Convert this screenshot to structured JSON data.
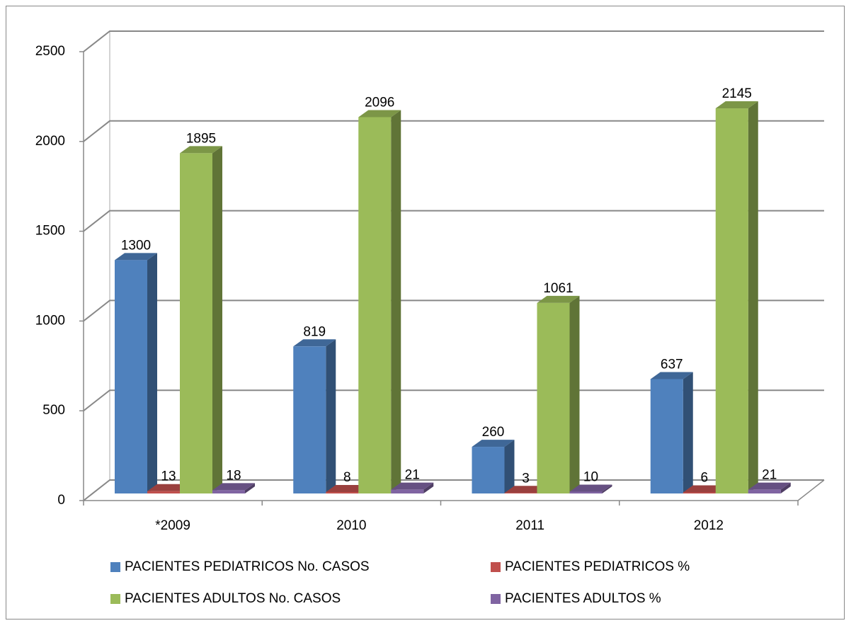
{
  "chart_data": {
    "type": "bar3d",
    "categories": [
      "*2009",
      "2010",
      "2011",
      "2012"
    ],
    "series": [
      {
        "name": "PACIENTES PEDIATRICOS No. CASOS",
        "color": "#4f81bd",
        "values": [
          1300,
          819,
          260,
          637
        ]
      },
      {
        "name": "PACIENTES PEDIATRICOS %",
        "color": "#c0504d",
        "values": [
          13,
          8,
          3,
          6
        ]
      },
      {
        "name": "PACIENTES ADULTOS No. CASOS",
        "color": "#9bbb59",
        "values": [
          1895,
          2096,
          1061,
          2145
        ]
      },
      {
        "name": "PACIENTES ADULTOS %",
        "color": "#8064a2",
        "values": [
          18,
          21,
          10,
          21
        ]
      }
    ],
    "ylim": [
      0,
      2500
    ],
    "yticks": [
      0,
      500,
      1000,
      1500,
      2000,
      2500
    ],
    "grid": true,
    "legend": "bottom"
  }
}
